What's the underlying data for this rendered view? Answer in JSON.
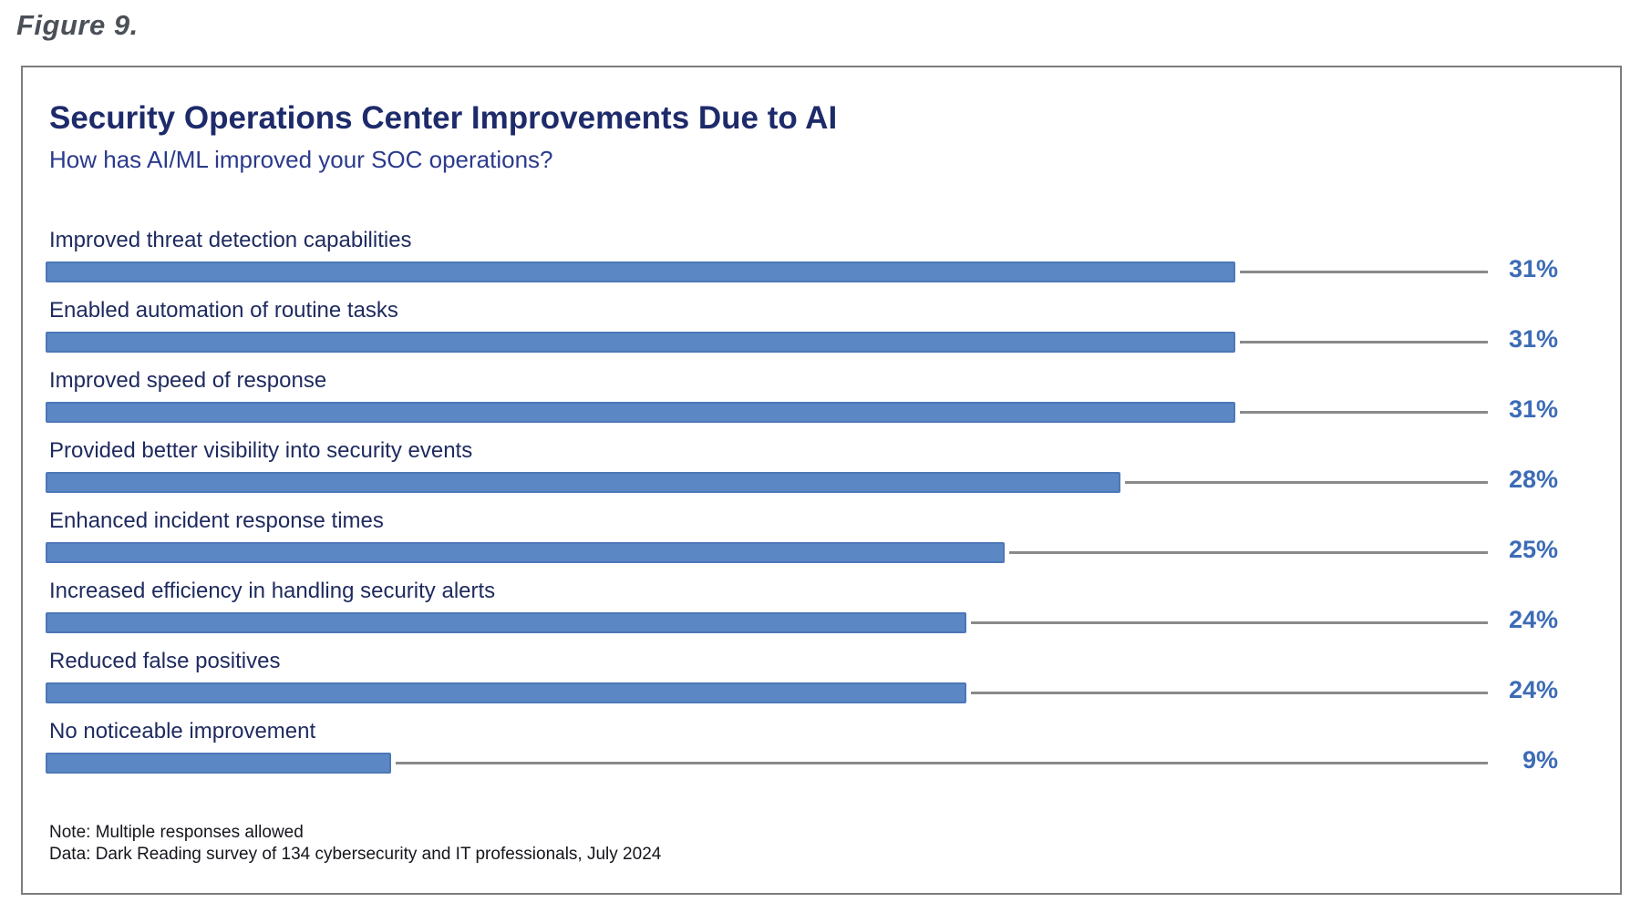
{
  "figure_label": "Figure 9.",
  "chart_data": {
    "type": "bar",
    "orientation": "horizontal",
    "title": "Security Operations Center Improvements Due to AI",
    "subtitle": "How has AI/ML improved your SOC operations?",
    "categories": [
      "Improved threat detection capabilities",
      "Enabled automation of routine tasks",
      "Improved speed of response",
      "Provided better visibility into security events",
      "Enhanced incident response times",
      "Increased efficiency in handling security alerts",
      "Reduced false positives",
      "No noticeable improvement"
    ],
    "values": [
      31,
      31,
      31,
      28,
      25,
      24,
      24,
      9
    ],
    "value_suffix": "%",
    "value_labels": [
      "31%",
      "31%",
      "31%",
      "28%",
      "25%",
      "24%",
      "24%",
      "9%"
    ],
    "xlim": [
      0,
      31
    ],
    "grid": false,
    "legend": "none",
    "notes": [
      "Note: Multiple responses allowed",
      "Data: Dark Reading survey of 134 cybersecurity and IT professionals, July 2024"
    ],
    "colors": {
      "bar_fill": "#5b87c5",
      "bar_border": "#4d77b7",
      "leader_line": "#8a8a8a",
      "value_label": "#3d6cb6",
      "title": "#1e2b6a",
      "subtitle": "#2b3a8c",
      "category_label": "#1e2a5e",
      "figure_label": "#4b5058",
      "box_border": "#7d7d7d",
      "notes_text": "#15161c"
    }
  }
}
